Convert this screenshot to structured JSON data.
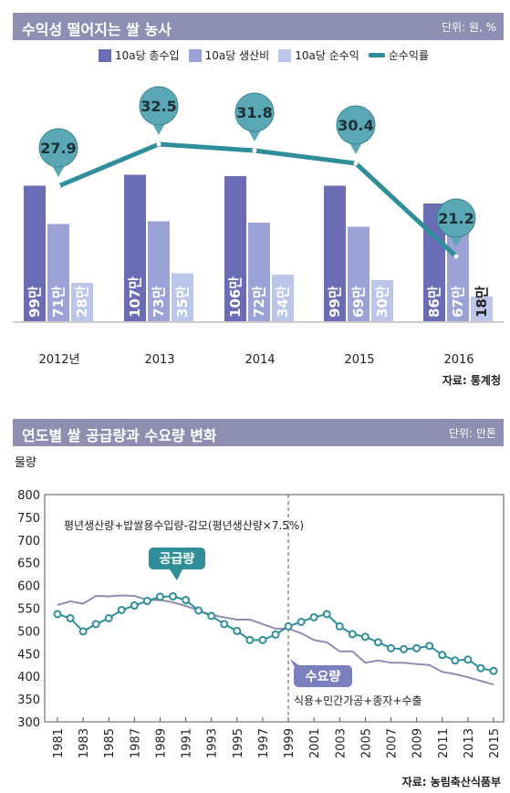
{
  "chart1": {
    "title": "수익성 떨어지는 쌀 농사",
    "unit": "단위: 원, %",
    "legend": [
      "10a당 총수입",
      "10a당 생산비",
      "10a당 순수익",
      "순수익률"
    ],
    "colors": {
      "revenue": "#6a6cb5",
      "cost": "#9aa2d6",
      "profit": "#bcc5ea",
      "rate": "#2f8e9a",
      "pin": "#5aa8b5"
    },
    "source": "자료: 통계청"
  },
  "chart2": {
    "title": "연도별 쌀 공급량과 수요량 변화",
    "unit": "단위: 만톤",
    "ylabel": "물량",
    "formula": "평년생산량+밥쌀용수입량-감모(평년생산량×7.5%)",
    "supply_label": "공급량",
    "demand_label": "수요량",
    "demand_note": "식용+민간가공+종자+수출",
    "source": "자료: 농림축산식품부",
    "colors": {
      "supply": "#2f8e9a",
      "demand": "#8e8eb2",
      "supply_tag": "#2f8e9a",
      "demand_tag": "#7a7fc0"
    }
  },
  "chart_data": [
    {
      "type": "bar",
      "categories": [
        "2012년",
        "2013",
        "2014",
        "2015",
        "2016"
      ],
      "series": [
        {
          "name": "10a당 총수입",
          "values": [
            99,
            107,
            106,
            99,
            86
          ],
          "labels": [
            "99만",
            "107만",
            "106만",
            "99만",
            "86만"
          ]
        },
        {
          "name": "10a당 생산비",
          "values": [
            71,
            73,
            72,
            69,
            67
          ],
          "labels": [
            "71만",
            "73만",
            "72만",
            "69만",
            "67만"
          ]
        },
        {
          "name": "10a당 순수익",
          "values": [
            28,
            35,
            34,
            30,
            18
          ],
          "labels": [
            "28만",
            "35만",
            "34만",
            "30만",
            "18만"
          ]
        },
        {
          "name": "순수익률",
          "values": [
            27.9,
            32.5,
            31.8,
            30.4,
            21.2
          ],
          "labels": [
            "27.9",
            "32.5",
            "31.8",
            "30.4",
            "21.2"
          ]
        }
      ]
    },
    {
      "type": "line",
      "x": [
        1981,
        1982,
        1983,
        1984,
        1985,
        1986,
        1987,
        1988,
        1989,
        1990,
        1991,
        1992,
        1993,
        1994,
        1995,
        1996,
        1997,
        1998,
        1999,
        2000,
        2001,
        2002,
        2003,
        2004,
        2005,
        2006,
        2007,
        2008,
        2009,
        2010,
        2011,
        2012,
        2013,
        2014,
        2015
      ],
      "xticks": [
        "1981",
        "1983",
        "1985",
        "1987",
        "1989",
        "1991",
        "1993",
        "1995",
        "1997",
        "1999",
        "2001",
        "2003",
        "2005",
        "2007",
        "2009",
        "2011",
        "2013",
        "2015"
      ],
      "yticks": [
        "800",
        "750",
        "700",
        "650",
        "600",
        "550",
        "500",
        "450",
        "400",
        "350",
        "300"
      ],
      "ylim": [
        300,
        800
      ],
      "series": [
        {
          "name": "공급량",
          "values": [
            537,
            528,
            499,
            515,
            528,
            546,
            556,
            566,
            575,
            576,
            568,
            545,
            533,
            515,
            500,
            480,
            480,
            492,
            510,
            520,
            530,
            537,
            510,
            493,
            487,
            475,
            462,
            460,
            462,
            467,
            447,
            435,
            437,
            418,
            412
          ]
        },
        {
          "name": "수요량",
          "values": [
            557,
            565,
            560,
            577,
            576,
            578,
            577,
            568,
            568,
            563,
            555,
            545,
            535,
            530,
            525,
            525,
            515,
            505,
            505,
            495,
            480,
            475,
            455,
            455,
            430,
            435,
            430,
            430,
            427,
            425,
            410,
            405,
            398,
            390,
            382
          ]
        }
      ]
    }
  ]
}
